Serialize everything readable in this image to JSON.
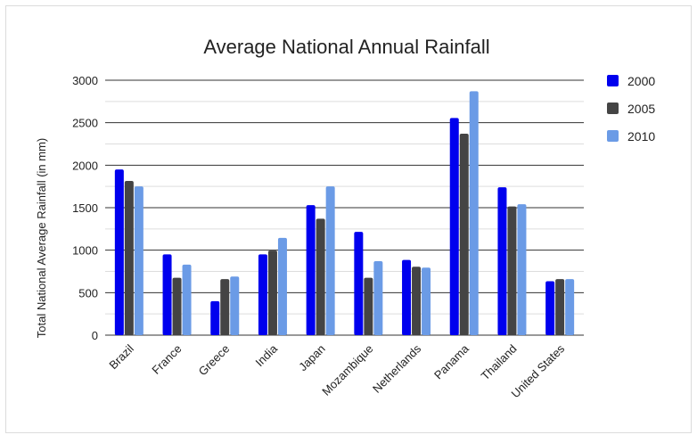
{
  "chart_data": {
    "type": "bar",
    "title": "Average National Annual Rainfall",
    "xlabel": "",
    "ylabel": "Total National Average Rainfall (in mm)",
    "ylim": [
      0,
      3000
    ],
    "yticks": [
      0,
      500,
      1000,
      1500,
      2000,
      2500,
      3000
    ],
    "grid": true,
    "legend_position": "right",
    "categories": [
      "Brazil",
      "France",
      "Greece",
      "India",
      "Japan",
      "Mozambique",
      "Netherlands",
      "Panama",
      "Thailand",
      "United States"
    ],
    "series": [
      {
        "name": "2000",
        "color": "#0000ee",
        "values": [
          1950,
          950,
          400,
          950,
          1530,
          1215,
          885,
          2555,
          1740,
          635
        ]
      },
      {
        "name": "2005",
        "color": "#444444",
        "values": [
          1815,
          675,
          660,
          995,
          1370,
          675,
          805,
          2370,
          1515,
          660
        ]
      },
      {
        "name": "2010",
        "color": "#6b9be6",
        "values": [
          1750,
          830,
          690,
          1145,
          1750,
          870,
          795,
          2870,
          1540,
          660
        ]
      }
    ]
  }
}
